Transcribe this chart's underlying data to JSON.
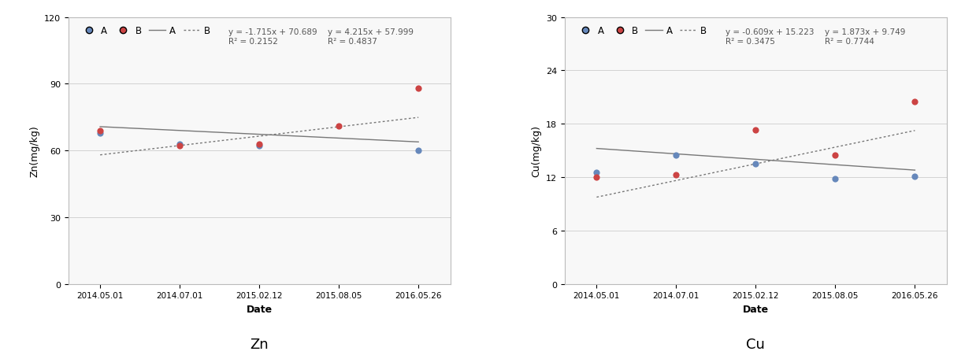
{
  "zn": {
    "dates_labels": [
      "2014.05.01",
      "2014.07.01",
      "2015.02.12",
      "2015.08.05",
      "2016.05.26"
    ],
    "A_values": [
      68.0,
      63.0,
      62.0,
      null,
      60.0
    ],
    "B_values": [
      69.0,
      62.0,
      63.0,
      71.0,
      88.0
    ],
    "ylabel": "Zn(mg/kg)",
    "ylim": [
      0,
      120
    ],
    "yticks": [
      0,
      30,
      60,
      90,
      120
    ],
    "eq_A": "y = -1.715x + 70.689",
    "r2_A": "R² = 0.2152",
    "eq_B": "y = 4.215x + 57.999",
    "r2_B": "R² = 0.4837",
    "slope_A": -1.715,
    "intercept_A": 70.689,
    "slope_B": 4.215,
    "intercept_B": 57.999,
    "title": "Zn"
  },
  "cu": {
    "dates_labels": [
      "2014.05.01",
      "2014.07.01",
      "2015.02.12",
      "2015.08.05",
      "2016.05.26"
    ],
    "A_values": [
      12.5,
      14.5,
      13.5,
      11.8,
      12.1
    ],
    "B_values": [
      12.0,
      12.3,
      17.3,
      14.5,
      20.5
    ],
    "ylabel": "Cu(mg/kg)",
    "ylim": [
      0,
      30
    ],
    "yticks": [
      0,
      6,
      12,
      18,
      24,
      30
    ],
    "eq_A": "y = -0.609x + 15.223",
    "r2_A": "R² = 0.3475",
    "eq_B": "y = 1.873x + 9.749",
    "r2_B": "R² = 0.7744",
    "slope_A": -0.609,
    "intercept_A": 15.223,
    "slope_B": 1.873,
    "intercept_B": 9.749,
    "title": "Cu"
  },
  "x_positions": [
    0,
    1,
    2,
    3,
    4
  ],
  "color_A": "#6688BB",
  "color_B": "#CC4444",
  "line_color": "#777777",
  "bg_color": "#f8f8f8",
  "xlabel": "Date",
  "legend_A_marker": "A",
  "legend_B_marker": "B",
  "legend_A_line": "A",
  "legend_B_line": "B"
}
